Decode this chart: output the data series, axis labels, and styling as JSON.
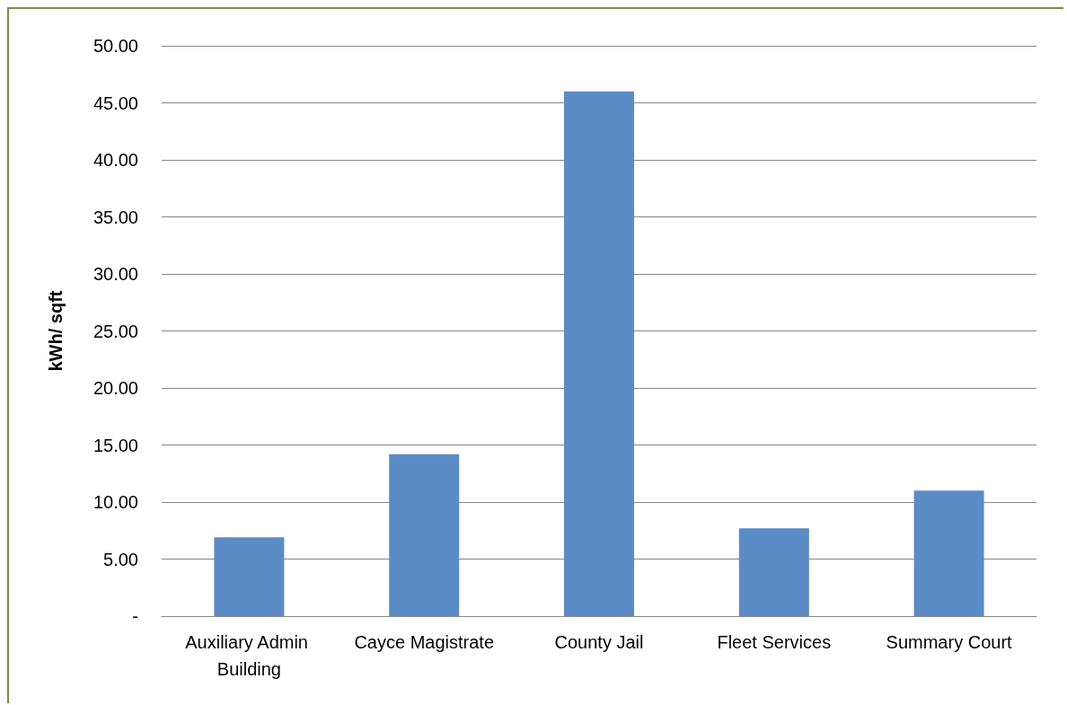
{
  "chart_data": {
    "type": "bar",
    "ylabel": "kWh/ sqft",
    "categories": [
      "Auxiliary Admin Building",
      "Cayce Magistrate",
      "County Jail",
      "Fleet Services",
      "Summary Court"
    ],
    "values": [
      6.9,
      14.2,
      46.0,
      7.7,
      11.0
    ],
    "color": "#5b8cc5",
    "ylim": [
      0,
      50
    ],
    "yticks": [
      {
        "value": 0,
        "label": "-"
      },
      {
        "value": 5,
        "label": "5.00"
      },
      {
        "value": 10,
        "label": "10.00"
      },
      {
        "value": 15,
        "label": "15.00"
      },
      {
        "value": 20,
        "label": "20.00"
      },
      {
        "value": 25,
        "label": "25.00"
      },
      {
        "value": 30,
        "label": "30.00"
      },
      {
        "value": 35,
        "label": "35.00"
      },
      {
        "value": 40,
        "label": "40.00"
      },
      {
        "value": 45,
        "label": "45.00"
      },
      {
        "value": 50,
        "label": "50.00"
      }
    ],
    "grid": "y"
  }
}
